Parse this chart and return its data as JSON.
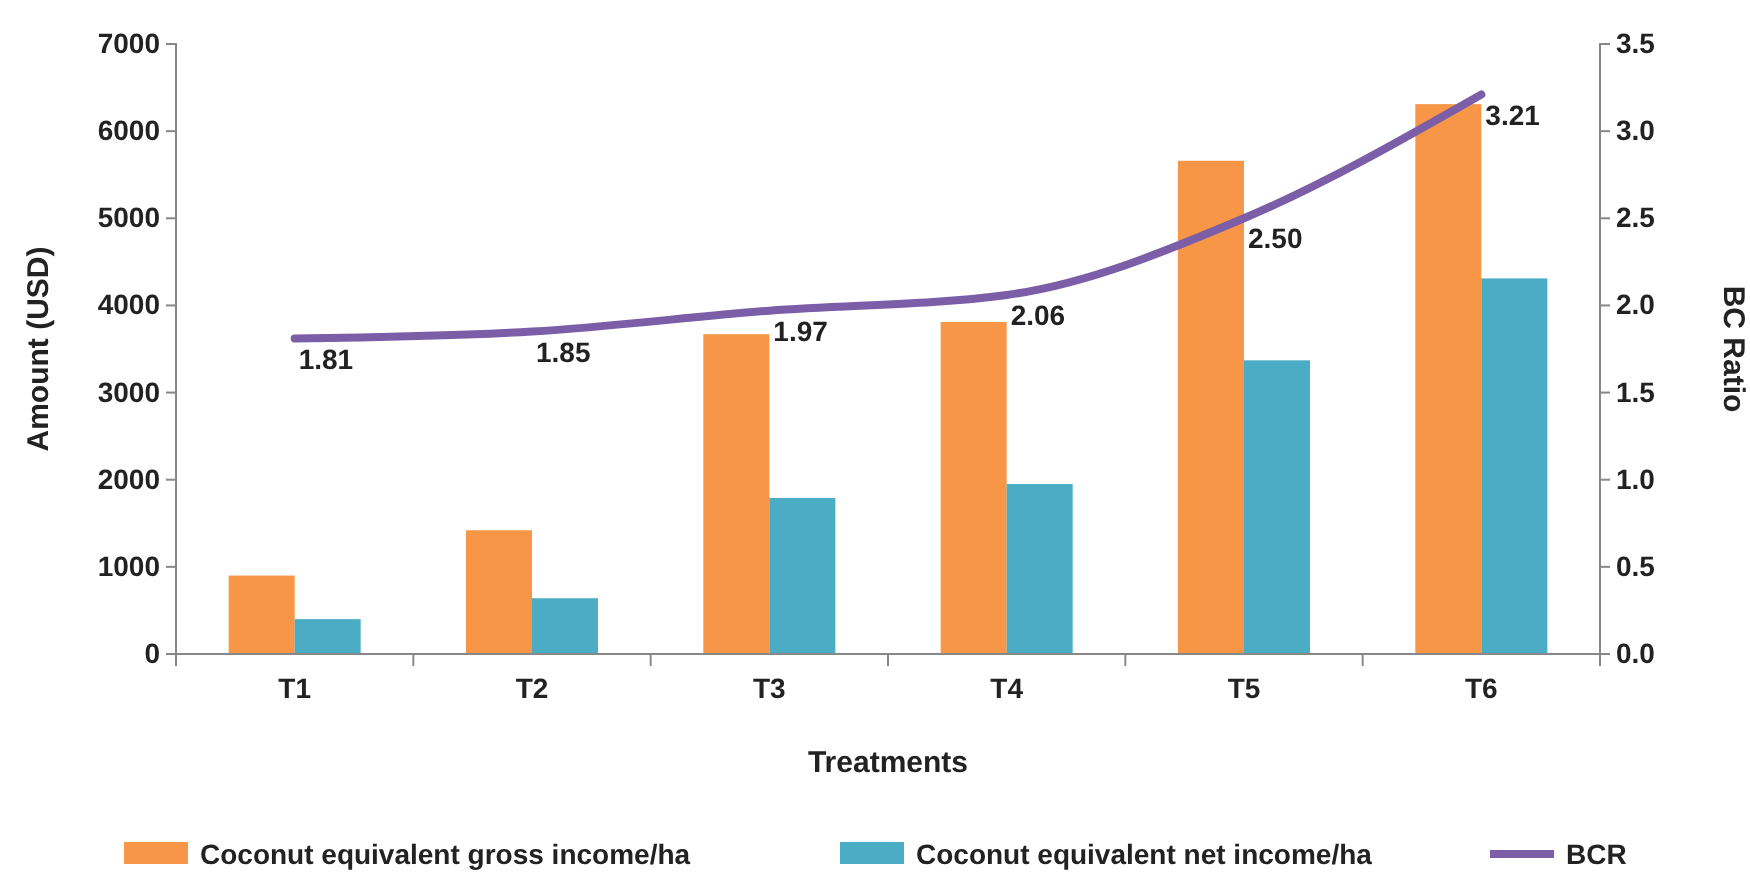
{
  "chart_data": {
    "type": "bar",
    "xlabel": "Treatments",
    "ylabel": "Amount (USD)",
    "y2label": "BC Ratio",
    "categories": [
      "T1",
      "T2",
      "T3",
      "T4",
      "T5",
      "T6"
    ],
    "series": [
      {
        "name": "Coconut equivalent gross income/ha",
        "color": "#f79646",
        "values": [
          900,
          1420,
          3670,
          3810,
          5660,
          6310
        ]
      },
      {
        "name": "Coconut equivalent net income/ha",
        "color": "#4bacc6",
        "values": [
          400,
          640,
          1790,
          1950,
          3370,
          4310
        ]
      },
      {
        "name": "BCR",
        "type": "line",
        "axis": "y2",
        "color": "#7b5ea7",
        "values": [
          1.81,
          1.85,
          1.97,
          2.06,
          2.5,
          3.21
        ],
        "value_labels": [
          "1.81",
          "1.85",
          "1.97",
          "2.06",
          "2.50",
          "3.21"
        ]
      }
    ],
    "ylim": [
      0,
      7000
    ],
    "yticks": [
      0,
      1000,
      2000,
      3000,
      4000,
      5000,
      6000,
      7000
    ],
    "y2lim": [
      0,
      3.5
    ],
    "y2ticks": [
      {
        "value": 0,
        "label": "0.0"
      },
      {
        "value": 0.5,
        "label": "0.5"
      },
      {
        "value": 1,
        "label": "1.0"
      },
      {
        "value": 1.5,
        "label": "1.5"
      },
      {
        "value": 2,
        "label": "2.0"
      },
      {
        "value": 2.5,
        "label": "2.5"
      },
      {
        "value": 3,
        "label": "3.0"
      },
      {
        "value": 3.5,
        "label": "3.5"
      }
    ],
    "legend": "bottom",
    "marker": "none",
    "grid": false
  }
}
